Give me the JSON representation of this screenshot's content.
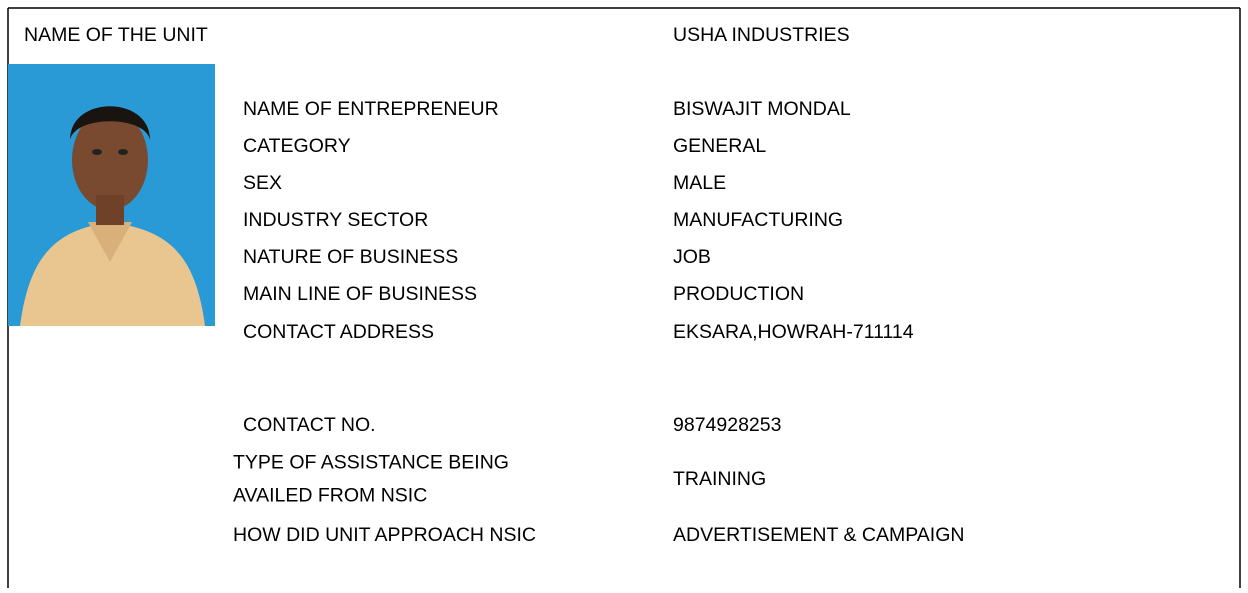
{
  "unit": {
    "label": "NAME OF THE UNIT",
    "value": "USHA INDUSTRIES"
  },
  "fields": [
    {
      "label": "NAME OF ENTREPRENEUR",
      "value": "BISWAJIT MONDAL"
    },
    {
      "label": "CATEGORY",
      "value": "GENERAL"
    },
    {
      "label": "SEX",
      "value": "MALE"
    },
    {
      "label": "INDUSTRY SECTOR",
      "value": "MANUFACTURING"
    },
    {
      "label": "NATURE OF BUSINESS",
      "value": "JOB"
    },
    {
      "label": "MAIN LINE OF BUSINESS",
      "value": "PRODUCTION"
    },
    {
      "label": "CONTACT ADDRESS",
      "value": "EKSARA,HOWRAH-711114"
    },
    {
      "label": "CONTACT NO.",
      "value": "9874928253"
    },
    {
      "label": [
        "TYPE OF ASSISTANCE BEING",
        "AVAILED FROM NSIC"
      ],
      "value": "TRAINING"
    },
    {
      "label": "HOW DID UNIT APPROACH NSIC",
      "value": "ADVERTISEMENT & CAMPAIGN"
    }
  ]
}
